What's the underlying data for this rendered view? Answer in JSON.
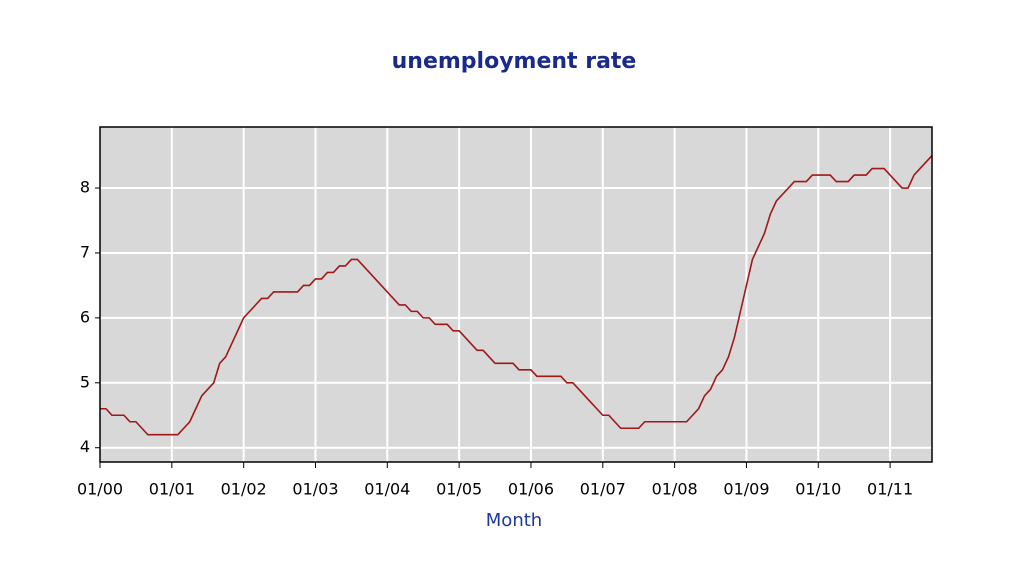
{
  "chart_data": {
    "type": "line",
    "title": "unemployment rate",
    "x_label": "Month",
    "categories": [
      "01/00",
      null,
      null,
      null,
      null,
      null,
      null,
      null,
      null,
      null,
      null,
      null,
      "01/01",
      null,
      null,
      null,
      null,
      null,
      null,
      null,
      null,
      null,
      null,
      null,
      "01/02",
      null,
      null,
      null,
      null,
      null,
      null,
      null,
      null,
      null,
      null,
      null,
      "01/03",
      null,
      null,
      null,
      null,
      null,
      null,
      null,
      null,
      null,
      null,
      null,
      "01/04",
      null,
      null,
      null,
      null,
      null,
      null,
      null,
      null,
      null,
      null,
      null,
      "01/05",
      null,
      null,
      null,
      null,
      null,
      null,
      null,
      null,
      null,
      null,
      null,
      "01/06",
      null,
      null,
      null,
      null,
      null,
      null,
      null,
      null,
      null,
      null,
      null,
      "01/07",
      null,
      null,
      null,
      null,
      null,
      null,
      null,
      null,
      null,
      null,
      null,
      "01/08",
      null,
      null,
      null,
      null,
      null,
      null,
      null,
      null,
      null,
      null,
      null,
      "01/09",
      null,
      null,
      null,
      null,
      null,
      null,
      null,
      null,
      null,
      null,
      null,
      "01/10",
      null,
      null,
      null,
      null,
      null,
      null,
      null,
      null,
      null,
      null,
      null,
      "01/11",
      null,
      null,
      null,
      null,
      null,
      null,
      null
    ],
    "values": [
      4.6,
      4.6,
      4.5,
      4.5,
      4.5,
      4.4,
      4.4,
      4.3,
      4.2,
      4.2,
      4.2,
      4.2,
      4.2,
      4.2,
      4.3,
      4.4,
      4.6,
      4.8,
      4.9,
      5.0,
      5.3,
      5.4,
      5.6,
      5.8,
      6.0,
      6.1,
      6.2,
      6.3,
      6.3,
      6.4,
      6.4,
      6.4,
      6.4,
      6.4,
      6.5,
      6.5,
      6.6,
      6.6,
      6.7,
      6.7,
      6.8,
      6.8,
      6.9,
      6.9,
      6.8,
      6.7,
      6.6,
      6.5,
      6.4,
      6.3,
      6.2,
      6.2,
      6.1,
      6.1,
      6.0,
      6.0,
      5.9,
      5.9,
      5.9,
      5.8,
      5.8,
      5.7,
      5.6,
      5.5,
      5.5,
      5.4,
      5.3,
      5.3,
      5.3,
      5.3,
      5.2,
      5.2,
      5.2,
      5.1,
      5.1,
      5.1,
      5.1,
      5.1,
      5.0,
      5.0,
      4.9,
      4.8,
      4.7,
      4.6,
      4.5,
      4.5,
      4.4,
      4.3,
      4.3,
      4.3,
      4.3,
      4.4,
      4.4,
      4.4,
      4.4,
      4.4,
      4.4,
      4.4,
      4.4,
      4.5,
      4.6,
      4.8,
      4.9,
      5.1,
      5.2,
      5.4,
      5.7,
      6.1,
      6.5,
      6.9,
      7.1,
      7.3,
      7.6,
      7.8,
      7.9,
      8.0,
      8.1,
      8.1,
      8.1,
      8.2,
      8.2,
      8.2,
      8.2,
      8.1,
      8.1,
      8.1,
      8.2,
      8.2,
      8.2,
      8.3,
      8.3,
      8.3,
      8.2,
      8.1,
      8.0,
      8.0,
      8.2,
      8.3,
      8.4,
      8.5
    ],
    "color": "#a01818",
    "ylim": [
      3.78,
      8.94
    ],
    "yticks": [
      4,
      5,
      6,
      7,
      8
    ],
    "grid": true
  }
}
